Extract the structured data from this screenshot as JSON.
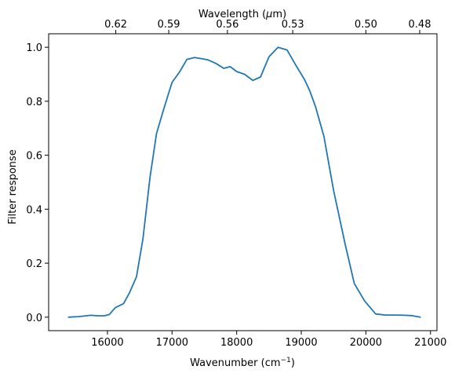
{
  "chart_data": {
    "type": "line",
    "xlabel": "Wavenumber (cm",
    "xlabel_sup": "−1",
    "xlabel_end": ")",
    "top_xlabel": "Wavelength (",
    "top_xlabel_mu": "μ",
    "top_xlabel_end": "m)",
    "ylabel": "Filter response",
    "xlim": [
      15090,
      21100
    ],
    "ylim": [
      -0.05,
      1.05
    ],
    "x_ticks": [
      16000,
      17000,
      18000,
      19000,
      20000,
      21000
    ],
    "x_tick_labels": [
      "16000",
      "17000",
      "18000",
      "19000",
      "20000",
      "21000"
    ],
    "y_ticks": [
      0.0,
      0.2,
      0.4,
      0.6,
      0.8,
      1.0
    ],
    "y_tick_labels": [
      "0.0",
      "0.2",
      "0.4",
      "0.6",
      "0.8",
      "1.0"
    ],
    "top_ticks_wavenumber": [
      16129,
      16949,
      17857,
      18868,
      20000,
      20833
    ],
    "top_tick_labels": [
      "0.62",
      "0.59",
      "0.56",
      "0.53",
      "0.50",
      "0.48"
    ],
    "series": [
      {
        "color": "#1f77b4",
        "x": [
          15400,
          15550,
          15750,
          15850,
          15950,
          16030,
          16120,
          16250,
          16340,
          16450,
          16550,
          16660,
          16760,
          16870,
          17000,
          17120,
          17230,
          17350,
          17450,
          17560,
          17680,
          17800,
          17900,
          18000,
          18120,
          18250,
          18370,
          18500,
          18640,
          18780,
          18900,
          19050,
          19130,
          19220,
          19350,
          19500,
          19680,
          19820,
          19980,
          20150,
          20300,
          20450,
          20600,
          20700,
          20840
        ],
        "y": [
          0.0,
          0.002,
          0.007,
          0.005,
          0.005,
          0.01,
          0.035,
          0.05,
          0.09,
          0.15,
          0.29,
          0.52,
          0.68,
          0.77,
          0.87,
          0.91,
          0.955,
          0.962,
          0.958,
          0.953,
          0.94,
          0.922,
          0.928,
          0.91,
          0.9,
          0.877,
          0.89,
          0.965,
          1.0,
          0.99,
          0.94,
          0.88,
          0.84,
          0.78,
          0.67,
          0.47,
          0.27,
          0.125,
          0.06,
          0.012,
          0.008,
          0.008,
          0.007,
          0.006,
          0.0
        ]
      }
    ]
  }
}
